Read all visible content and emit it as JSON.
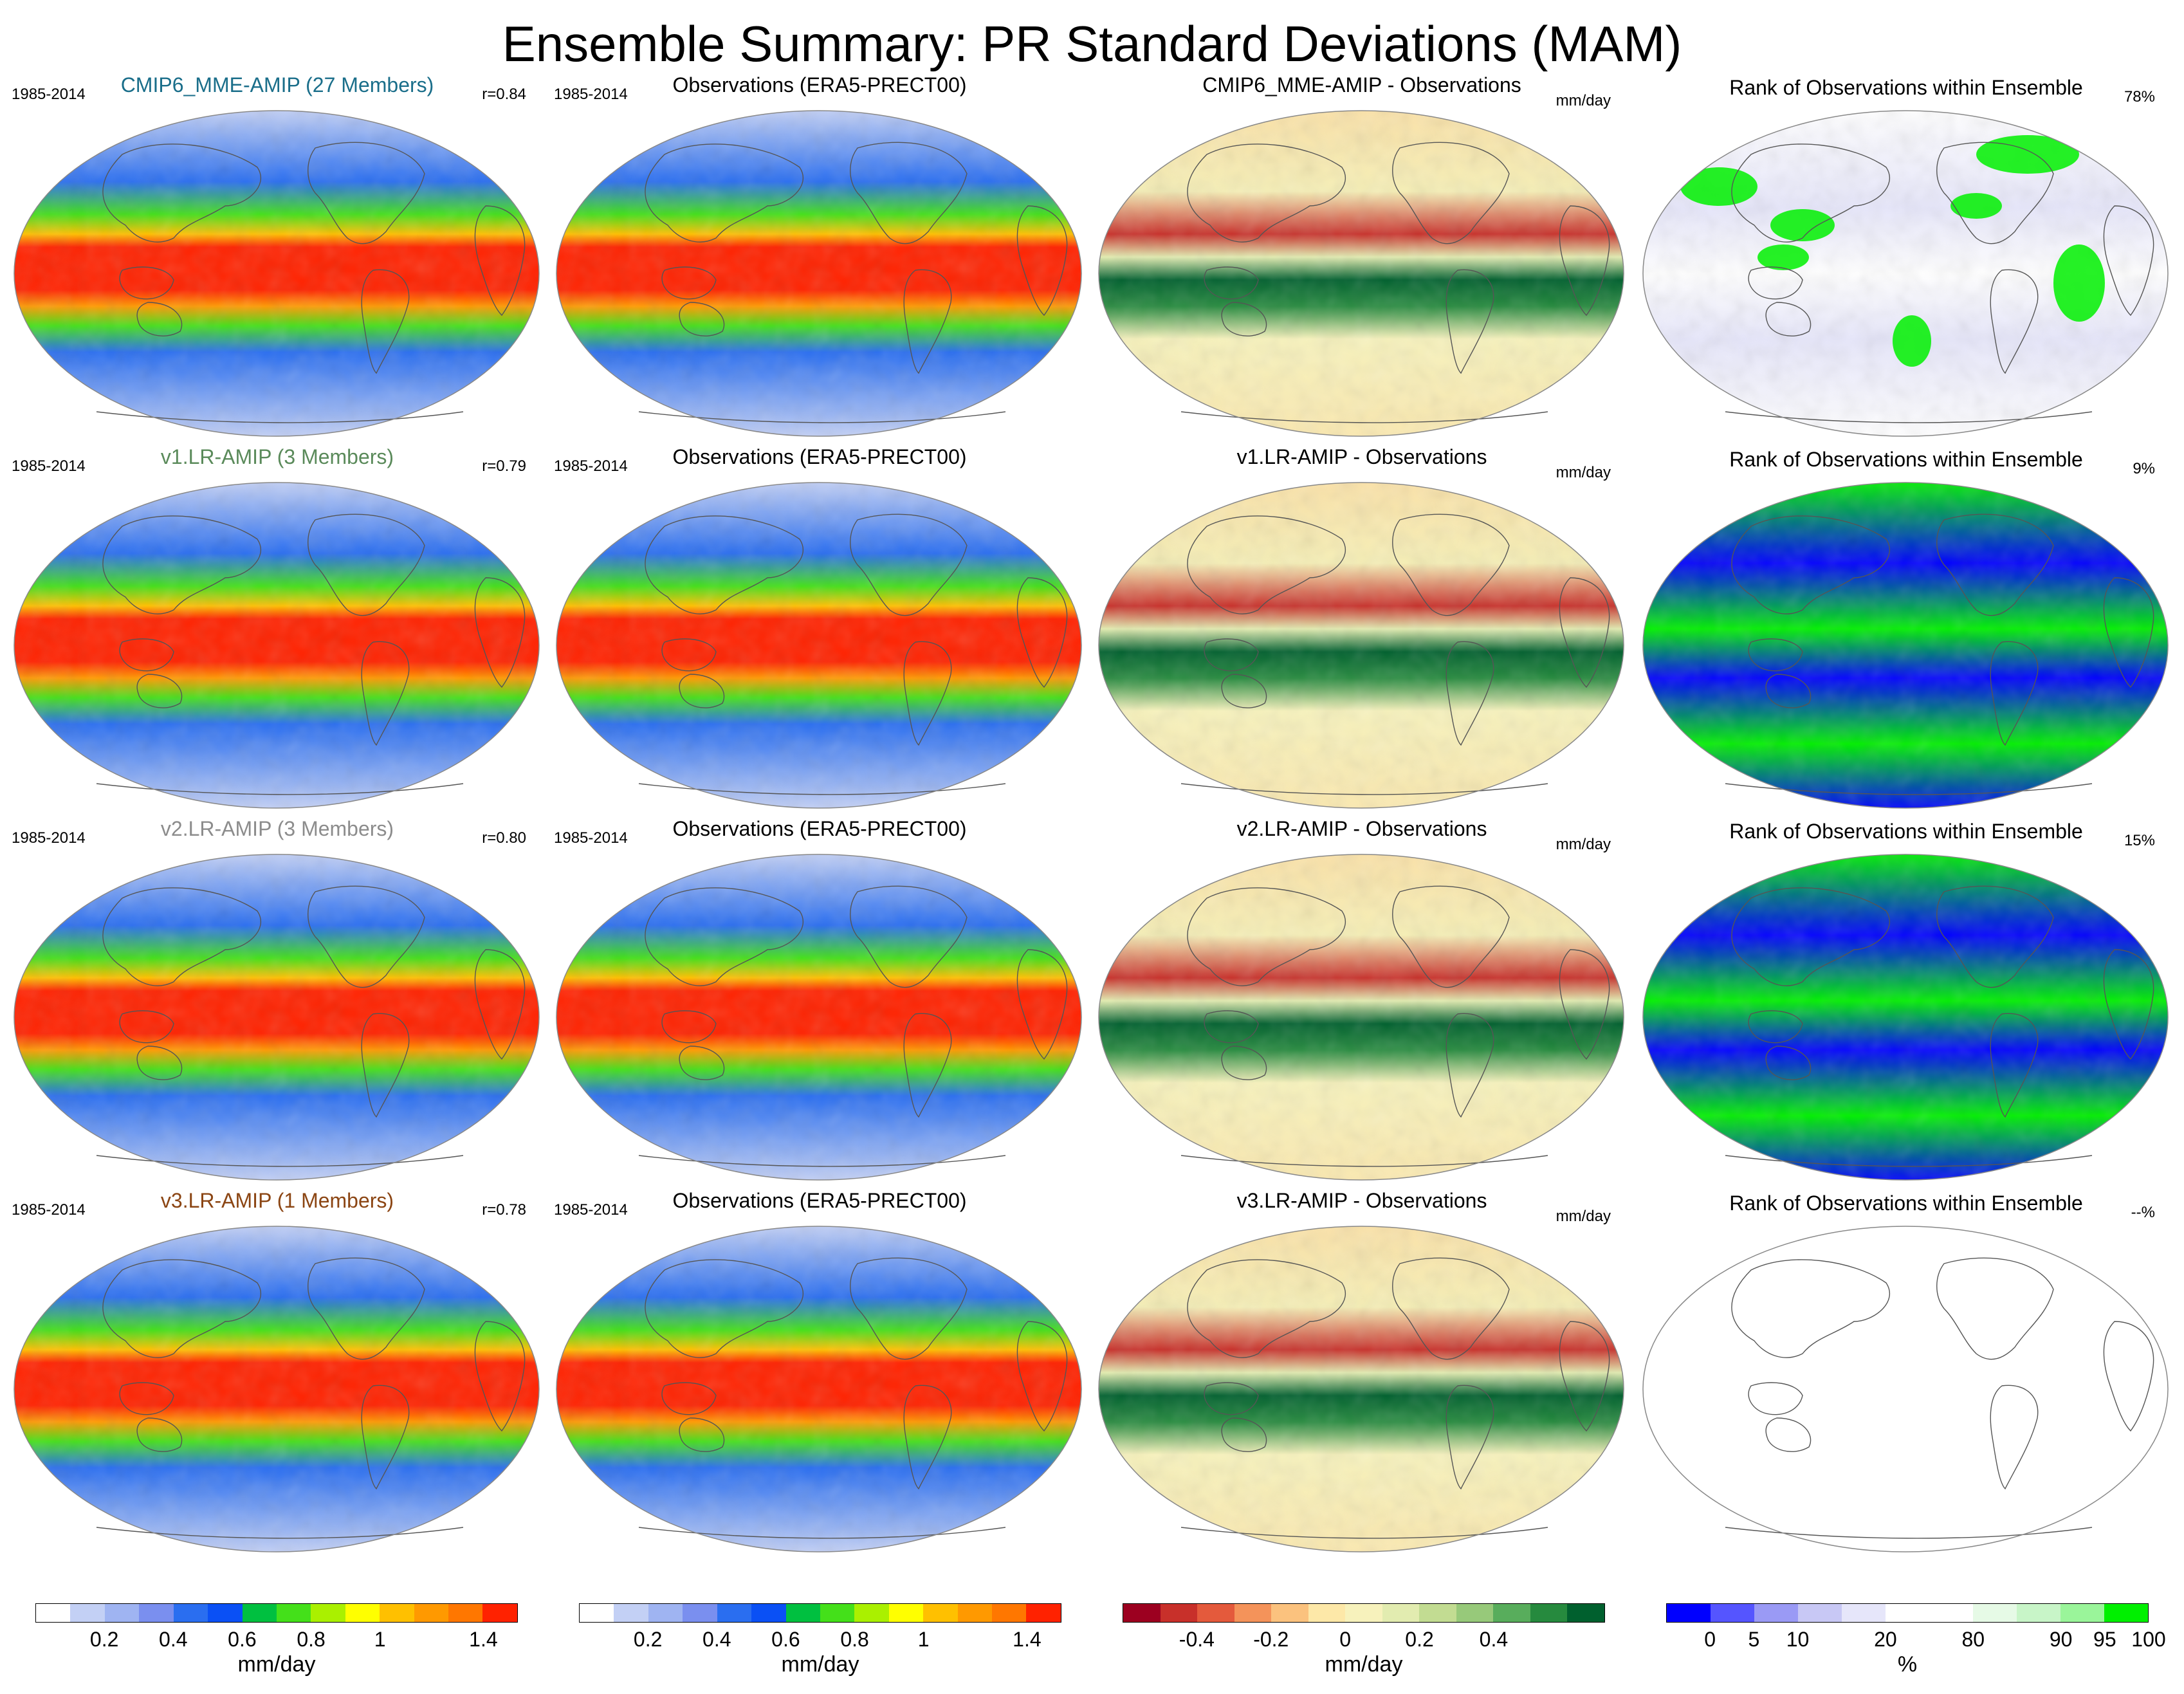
{
  "page_title": "Ensemble Summary: PR Standard Deviations (MAM)",
  "rows": [
    {
      "model_title": "CMIP6_MME-AMIP (27 Members)",
      "model_title_color": "#1a6e8a",
      "period": "1985-2014",
      "correlation": "r=0.84",
      "obs_title": "Observations (ERA5-PRECT00)",
      "obs_period": "1985-2014",
      "diff_title": "CMIP6_MME-AMIP - Observations",
      "diff_unit": "mm/day",
      "rank_title": "Rank of Observations within Ensemble",
      "rank_percent": "78%"
    },
    {
      "model_title": "v1.LR-AMIP (3 Members)",
      "model_title_color": "#5a8a5a",
      "period": "1985-2014",
      "correlation": "r=0.79",
      "obs_title": "Observations (ERA5-PRECT00)",
      "obs_period": "1985-2014",
      "diff_title": "v1.LR-AMIP - Observations",
      "diff_unit": "mm/day",
      "rank_title": "Rank of Observations within Ensemble",
      "rank_percent": "9%"
    },
    {
      "model_title": "v2.LR-AMIP (3 Members)",
      "model_title_color": "#8c8c8c",
      "period": "1985-2014",
      "correlation": "r=0.80",
      "obs_title": "Observations (ERA5-PRECT00)",
      "obs_period": "1985-2014",
      "diff_title": "v2.LR-AMIP - Observations",
      "diff_unit": "mm/day",
      "rank_title": "Rank of Observations within Ensemble",
      "rank_percent": "15%"
    },
    {
      "model_title": "v3.LR-AMIP (1 Members)",
      "model_title_color": "#8b4513",
      "period": "1985-2014",
      "correlation": "r=0.78",
      "obs_title": "Observations (ERA5-PRECT00)",
      "obs_period": "1985-2014",
      "diff_title": "v3.LR-AMIP - Observations",
      "diff_unit": "mm/day",
      "rank_title": "Rank of Observations within Ensemble",
      "rank_percent": "--%"
    }
  ],
  "rank_fill": [
    "mixed",
    "blue",
    "blue",
    "empty"
  ],
  "colorbars": [
    {
      "name": "model",
      "unit": "mm/day",
      "colors": [
        "#ffffff",
        "#c3d0f5",
        "#9fb4f2",
        "#7a8fef",
        "#2a6ef0",
        "#0a50f5",
        "#00c040",
        "#44e01a",
        "#aaf000",
        "#ffff00",
        "#ffc000",
        "#ff9900",
        "#ff7700",
        "#ff2200"
      ],
      "ticks": [
        "0.2",
        "0.4",
        "0.6",
        "0.8",
        "1",
        "1.4"
      ],
      "tick_index": [
        2,
        4,
        6,
        8,
        10,
        13
      ]
    },
    {
      "name": "observations",
      "unit": "mm/day",
      "colors": [
        "#ffffff",
        "#c3d0f5",
        "#9fb4f2",
        "#7a8fef",
        "#2a6ef0",
        "#0a50f5",
        "#00c040",
        "#44e01a",
        "#aaf000",
        "#ffff00",
        "#ffc000",
        "#ff9900",
        "#ff7700",
        "#ff2200"
      ],
      "ticks": [
        "0.2",
        "0.4",
        "0.6",
        "0.8",
        "1",
        "1.4"
      ],
      "tick_index": [
        2,
        4,
        6,
        8,
        10,
        13
      ]
    },
    {
      "name": "difference",
      "unit": "mm/day",
      "colors": [
        "#9c0020",
        "#c8302a",
        "#e45a3c",
        "#f4935a",
        "#fbc27e",
        "#fde8a8",
        "#f7f2bc",
        "#e2ecb0",
        "#c2dc92",
        "#97c97a",
        "#58ad5c",
        "#268a3e",
        "#00602e"
      ],
      "ticks": [
        "-0.4",
        "-0.2",
        "0",
        "0.2",
        "0.4"
      ],
      "tick_index": [
        2,
        4,
        6,
        8,
        10
      ]
    },
    {
      "name": "rank",
      "unit": "%",
      "colors": [
        "#0000ff",
        "#5555ff",
        "#9a9af5",
        "#c8c8f5",
        "#e6e6fa",
        "#ffffff",
        "#ffffff",
        "#e6fae6",
        "#c8f5c8",
        "#9af59a",
        "#00f000"
      ],
      "ticks": [
        "0",
        "5",
        "10",
        "20",
        "80",
        "90",
        "95",
        "100"
      ],
      "tick_index": [
        1,
        2,
        3,
        5,
        7,
        9,
        10,
        11
      ]
    }
  ]
}
